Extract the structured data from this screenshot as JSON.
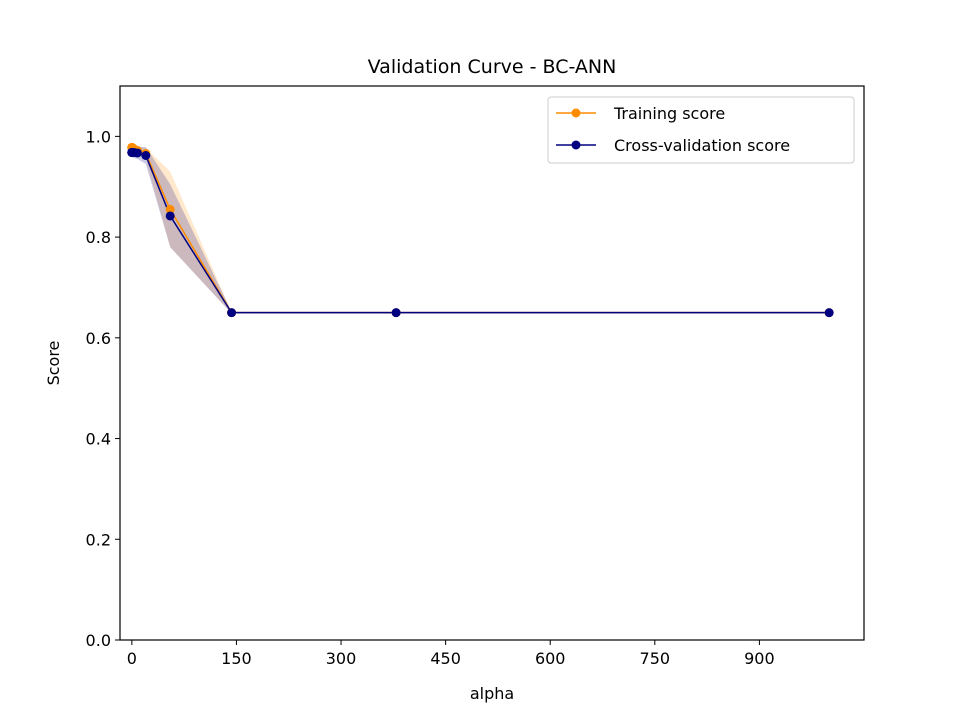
{
  "chart_data": {
    "type": "line",
    "title": "Validation Curve - BC-ANN",
    "xlabel": "alpha",
    "ylabel": "Score",
    "xlim": [
      -17,
      1050
    ],
    "ylim": [
      0.0,
      1.1
    ],
    "xticks": [
      0,
      150,
      300,
      450,
      600,
      750,
      900
    ],
    "yticks": [
      0.0,
      0.2,
      0.4,
      0.6,
      0.8,
      1.0
    ],
    "xtick_labels": [
      "0",
      "150",
      "300",
      "450",
      "600",
      "750",
      "900"
    ],
    "ytick_labels": [
      "0.0",
      "0.2",
      "0.4",
      "0.6",
      "0.8",
      "1.0"
    ],
    "grid": false,
    "legend_position": "upper right",
    "x": [
      0.001,
      0.003,
      0.01,
      0.03,
      0.1,
      0.3,
      1,
      3,
      8,
      20,
      55,
      143,
      379,
      1000
    ],
    "series": [
      {
        "name": "Training score",
        "color": "#ff8c00",
        "values": [
          0.978,
          0.978,
          0.978,
          0.978,
          0.978,
          0.978,
          0.977,
          0.975,
          0.972,
          0.966,
          0.855,
          0.65,
          0.65,
          0.65
        ],
        "band_low": [
          0.972,
          0.972,
          0.972,
          0.972,
          0.972,
          0.972,
          0.971,
          0.968,
          0.965,
          0.955,
          0.78,
          0.649,
          0.649,
          0.649
        ],
        "band_high": [
          0.985,
          0.985,
          0.985,
          0.985,
          0.985,
          0.985,
          0.984,
          0.982,
          0.979,
          0.977,
          0.93,
          0.651,
          0.651,
          0.651
        ]
      },
      {
        "name": "Cross-validation score",
        "color": "#000080",
        "values": [
          0.968,
          0.968,
          0.968,
          0.968,
          0.968,
          0.968,
          0.968,
          0.968,
          0.967,
          0.962,
          0.842,
          0.65,
          0.65,
          0.65
        ],
        "band_low": [
          0.958,
          0.958,
          0.958,
          0.958,
          0.958,
          0.958,
          0.958,
          0.957,
          0.955,
          0.945,
          0.78,
          0.648,
          0.648,
          0.648
        ],
        "band_high": [
          0.978,
          0.978,
          0.978,
          0.978,
          0.978,
          0.978,
          0.978,
          0.979,
          0.979,
          0.979,
          0.905,
          0.652,
          0.652,
          0.652
        ]
      }
    ]
  }
}
